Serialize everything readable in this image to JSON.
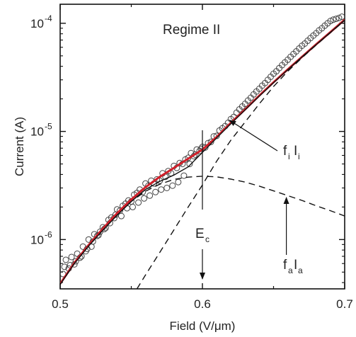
{
  "chart_data": {
    "type": "scatter",
    "title": "",
    "annotation_regime": "Regime II",
    "xlabel": "Field (V/μm)",
    "ylabel": "Current (A)",
    "x_scale": "linear",
    "y_scale": "log",
    "xlim": [
      0.5,
      0.7
    ],
    "ylim": [
      3.5e-07,
      0.00015
    ],
    "x_ticks": [
      0.5,
      0.6,
      0.7
    ],
    "x_tick_labels": [
      "0.5",
      "0.6",
      "0.7"
    ],
    "y_ticks": [
      1e-06,
      1e-05,
      0.0001
    ],
    "y_tick_labels": [
      {
        "base": "10",
        "exp": "-6"
      },
      {
        "base": "10",
        "exp": "-5"
      },
      {
        "base": "10",
        "exp": "-4"
      }
    ],
    "grid": false,
    "series": [
      {
        "kind": "points",
        "marker": "open-circle",
        "color": "#444444",
        "x": [
          0.502,
          0.504,
          0.506,
          0.508,
          0.51,
          0.512,
          0.514,
          0.516,
          0.518,
          0.52,
          0.522,
          0.524,
          0.526,
          0.528,
          0.53,
          0.532,
          0.534,
          0.536,
          0.538,
          0.54,
          0.542,
          0.544,
          0.546,
          0.548,
          0.55,
          0.552,
          0.554,
          0.556,
          0.558,
          0.56,
          0.562,
          0.564,
          0.566,
          0.568,
          0.57,
          0.572,
          0.574,
          0.576,
          0.578,
          0.58,
          0.582,
          0.584,
          0.586,
          0.588,
          0.59,
          0.592,
          0.594,
          0.596,
          0.598,
          0.6,
          0.602,
          0.604,
          0.606,
          0.608,
          0.61,
          0.612,
          0.614,
          0.616,
          0.618,
          0.62,
          0.622,
          0.624,
          0.626,
          0.628,
          0.63,
          0.632,
          0.634,
          0.636,
          0.638,
          0.64,
          0.642,
          0.644,
          0.646,
          0.648,
          0.65,
          0.652,
          0.654,
          0.656,
          0.658,
          0.66,
          0.662,
          0.664,
          0.666,
          0.668,
          0.67,
          0.672,
          0.674,
          0.676,
          0.678,
          0.68,
          0.682,
          0.684,
          0.686,
          0.688,
          0.69,
          0.692,
          0.694,
          0.696,
          0.698,
          0.503,
          0.507,
          0.511,
          0.515,
          0.519,
          0.523,
          0.527,
          0.531,
          0.535,
          0.539,
          0.543,
          0.547,
          0.551,
          0.555,
          0.559,
          0.563,
          0.567,
          0.571,
          0.575,
          0.579,
          0.583,
          0.587,
          0.591,
          0.595,
          0.599
        ],
        "y": [
          4.8e-07,
          6.5e-07,
          5.4e-07,
          6.9e-07,
          5.9e-07,
          7.4e-07,
          6.8e-07,
          8.6e-07,
          7.8e-07,
          1e-06,
          8.6e-07,
          1.12e-06,
          1.08e-06,
          1.18e-06,
          1.3e-06,
          1.28e-06,
          1.52e-06,
          1.6e-06,
          1.58e-06,
          1.9e-06,
          1.85e-06,
          2.05e-06,
          2.15e-06,
          2.3e-06,
          2.25e-06,
          2.6e-06,
          2.7e-06,
          2.9e-06,
          2.75e-06,
          3.3e-06,
          3.15e-06,
          3.5e-06,
          3.3e-06,
          3.6e-06,
          3.5e-06,
          4.1e-06,
          3.8e-06,
          4.3e-06,
          4.1e-06,
          4.8e-06,
          4.6e-06,
          5.1e-06,
          5e-06,
          5.5e-06,
          5.7e-06,
          6.3e-06,
          5.9e-06,
          6.8e-06,
          6.6e-06,
          7.2e-06,
          7.1e-06,
          7.8e-06,
          8e-06,
          9e-06,
          9.1e-06,
          1.02e-05,
          1.07e-05,
          1.12e-05,
          1.2e-05,
          1.3e-05,
          1.36e-05,
          1.49e-05,
          1.6e-05,
          1.7e-05,
          1.8e-05,
          1.93e-05,
          2.05e-05,
          2.2e-05,
          2.34e-05,
          2.48e-05,
          2.65e-05,
          2.8e-05,
          3e-05,
          3.2e-05,
          3.42e-05,
          3.6e-05,
          3.85e-05,
          4.1e-05,
          4.35e-05,
          4.6e-05,
          4.9e-05,
          5.2e-05,
          5.5e-05,
          5.85e-05,
          6.2e-05,
          6.5e-05,
          6.9e-05,
          7.3e-05,
          7.7e-05,
          8.1e-05,
          8.6e-05,
          9e-05,
          9.5e-05,
          0.0001,
          0.000105,
          0.000108,
          0.00011,
          0.000112,
          0.000115,
          5.6e-07,
          5.8e-07,
          6.3e-07,
          7e-07,
          8.2e-07,
          9.6e-07,
          1.1e-06,
          1.25e-06,
          1.42e-06,
          1.7e-06,
          1.65e-06,
          1.95e-06,
          2e-06,
          2.2e-06,
          2.4e-06,
          2.55e-06,
          2.75e-06,
          2.9e-06,
          3e-06,
          3.15e-06,
          3.4e-06,
          3.9e-06,
          5e-06,
          6.1e-06,
          6.9e-06
        ]
      },
      {
        "kind": "line",
        "style": "solid",
        "color": "#d0202a",
        "x": [
          0.5,
          0.51,
          0.52,
          0.53,
          0.54,
          0.55,
          0.56,
          0.57,
          0.58,
          0.59,
          0.6,
          0.61,
          0.62,
          0.63,
          0.64,
          0.65,
          0.66,
          0.67,
          0.68,
          0.69,
          0.7
        ],
        "y": [
          3.9e-07,
          6.1e-07,
          8.9e-07,
          1.26e-06,
          1.75e-06,
          2.35e-06,
          3.05e-06,
          3.8e-06,
          4.6e-06,
          5.6e-06,
          6.8e-06,
          8.9e-06,
          1.2e-05,
          1.6e-05,
          2.15e-05,
          2.85e-05,
          3.75e-05,
          4.9e-05,
          6.4e-05,
          8.3e-05,
          0.000108
        ]
      },
      {
        "kind": "line",
        "style": "solid",
        "color": "#111111",
        "x": [
          0.5,
          0.51,
          0.52,
          0.53,
          0.54,
          0.55,
          0.56,
          0.57,
          0.58,
          0.59,
          0.6,
          0.61,
          0.62,
          0.63,
          0.64,
          0.65,
          0.66,
          0.67,
          0.68,
          0.69,
          0.7
        ],
        "y": [
          3.85e-07,
          6e-07,
          8.7e-07,
          1.22e-06,
          1.68e-06,
          2.25e-06,
          2.9e-06,
          3.45e-06,
          3.95e-06,
          4.7e-06,
          6.4e-06,
          8.7e-06,
          1.18e-05,
          1.58e-05,
          2.12e-05,
          2.82e-05,
          3.72e-05,
          4.88e-05,
          6.35e-05,
          8.25e-05,
          0.000107
        ]
      },
      {
        "kind": "line",
        "style": "dashed",
        "color": "#111111",
        "x": [
          0.5,
          0.51,
          0.52,
          0.53,
          0.54,
          0.55,
          0.56,
          0.57,
          0.58,
          0.59,
          0.6,
          0.61,
          0.62,
          0.63,
          0.64,
          0.65,
          0.66,
          0.67,
          0.68,
          0.69,
          0.7
        ],
        "y": [
          3.85e-07,
          6e-07,
          8.7e-07,
          1.22e-06,
          1.68e-06,
          2.25e-06,
          2.8e-06,
          3.25e-06,
          3.6e-06,
          3.78e-06,
          3.85e-06,
          3.8e-06,
          3.62e-06,
          3.4e-06,
          3.12e-06,
          2.82e-06,
          2.55e-06,
          2.3e-06,
          2.05e-06,
          1.85e-06,
          1.65e-06
        ]
      },
      {
        "kind": "line",
        "style": "dashed",
        "color": "#111111",
        "x": [
          0.554,
          0.56,
          0.57,
          0.58,
          0.59,
          0.6,
          0.61,
          0.62,
          0.63,
          0.64,
          0.65,
          0.66,
          0.67,
          0.68,
          0.69,
          0.7
        ],
        "y": [
          3.5e-07,
          4.7e-07,
          7.6e-07,
          1.23e-06,
          2e-06,
          3.2e-06,
          5.3e-06,
          8.3e-06,
          1.22e-05,
          1.8e-05,
          2.6e-05,
          3.6e-05,
          4.8e-05,
          6.3e-05,
          8.2e-05,
          0.000106
        ]
      }
    ],
    "annotations": {
      "ec": {
        "main": "E",
        "sub": "c",
        "x": 0.6
      },
      "fi": {
        "main1": "f",
        "sub1": "i",
        "main2": "I",
        "sub2": "i",
        "arrow_target": [
          0.617,
          1.27e-05
        ]
      },
      "fa": {
        "main1": "f",
        "sub1": "a",
        "main2": "I",
        "sub2": "a",
        "arrow_target": [
          0.659,
          2.6e-06
        ]
      }
    }
  }
}
